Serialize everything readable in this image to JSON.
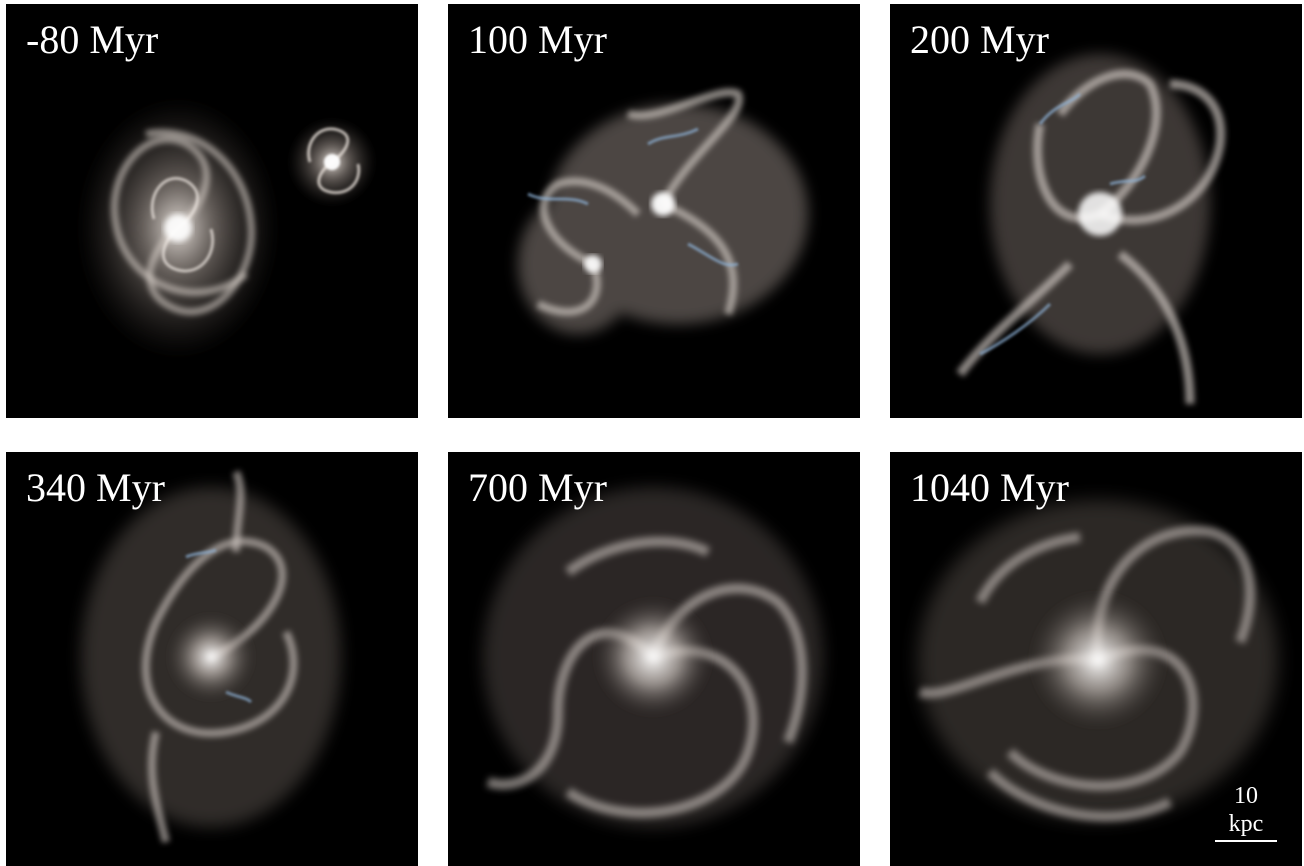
{
  "panels": [
    {
      "label": "-80 Myr"
    },
    {
      "label": "100 Myr"
    },
    {
      "label": "200 Myr"
    },
    {
      "label": "340 Myr"
    },
    {
      "label": "700 Myr"
    },
    {
      "label": "1040 Myr"
    }
  ],
  "scale_bar": {
    "label": "10 kpc"
  },
  "colors": {
    "background": "#000000",
    "stars": "#e8e2dc",
    "young_stars": "#8fb4d8",
    "frame": "#ffffff"
  }
}
